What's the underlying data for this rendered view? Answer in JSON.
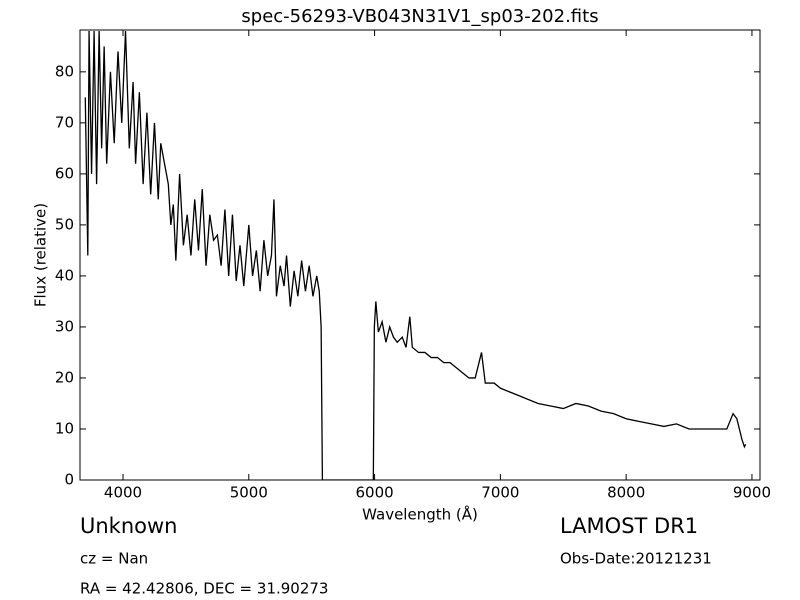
{
  "chart_data": {
    "type": "line",
    "title": "spec-56293-VB043N31V1_sp03-202.fits",
    "x_label": "Wavelength (Å)",
    "y_label": "Flux (relative)",
    "color": "#000000",
    "x": [
      3700,
      3720,
      3730,
      3750,
      3770,
      3790,
      3810,
      3830,
      3850,
      3870,
      3900,
      3930,
      3960,
      3990,
      4020,
      4050,
      4080,
      4100,
      4130,
      4160,
      4190,
      4220,
      4250,
      4280,
      4300,
      4330,
      4360,
      4380,
      4400,
      4420,
      4450,
      4480,
      4510,
      4540,
      4570,
      4600,
      4630,
      4660,
      4690,
      4720,
      4750,
      4780,
      4810,
      4840,
      4870,
      4900,
      4930,
      4960,
      5000,
      5030,
      5060,
      5090,
      5120,
      5150,
      5180,
      5200,
      5220,
      5250,
      5280,
      5300,
      5330,
      5360,
      5390,
      5420,
      5450,
      5480,
      5510,
      5540,
      5560,
      5575,
      5585,
      5990,
      5998,
      6010,
      6030,
      6060,
      6090,
      6120,
      6150,
      6180,
      6220,
      6250,
      6280,
      6300,
      6350,
      6400,
      6450,
      6500,
      6550,
      6600,
      6650,
      6700,
      6750,
      6800,
      6850,
      6880,
      6950,
      7000,
      7100,
      7200,
      7300,
      7400,
      7500,
      7600,
      7700,
      7800,
      7900,
      8000,
      8100,
      8200,
      8300,
      8400,
      8500,
      8600,
      8700,
      8800,
      8850,
      8880,
      8920,
      8940,
      8950
    ],
    "values": [
      75,
      44,
      88,
      60,
      88,
      58,
      88,
      65,
      85,
      62,
      80,
      66,
      84,
      70,
      88,
      65,
      78,
      62,
      76,
      58,
      72,
      56,
      70,
      55,
      66,
      62,
      58,
      50,
      54,
      43,
      60,
      46,
      52,
      44,
      55,
      45,
      57,
      42,
      52,
      47,
      48,
      42,
      53,
      40,
      52,
      39,
      46,
      38,
      50,
      40,
      45,
      37,
      47,
      40,
      44,
      55,
      36,
      42,
      38,
      44,
      34,
      41,
      36,
      43,
      37,
      42,
      36,
      40,
      37,
      30,
      0,
      0,
      30,
      35,
      29,
      31,
      27,
      30,
      28,
      27,
      28,
      26,
      32,
      26,
      25,
      25,
      24,
      24,
      23,
      23,
      22,
      21,
      20,
      20,
      25,
      19,
      19,
      18,
      17,
      16,
      15,
      14.5,
      14,
      15,
      14.5,
      13.5,
      13,
      12,
      11.5,
      11,
      10.5,
      11,
      10,
      10,
      10,
      10,
      13,
      12,
      8,
      6.5,
      7
    ],
    "xlim": [
      3658,
      9064
    ],
    "ylim": [
      0,
      88.2
    ],
    "xticks": [
      4000,
      5000,
      6000,
      7000,
      8000,
      9000
    ],
    "yticks": [
      0,
      10,
      20,
      30,
      40,
      50,
      60,
      70,
      80
    ],
    "annotations": [
      "Unknown",
      "cz = Nan",
      "RA = 42.42806, DEC = 31.90273",
      "LAMOST DR1",
      "Obs-Date:20121231"
    ]
  }
}
